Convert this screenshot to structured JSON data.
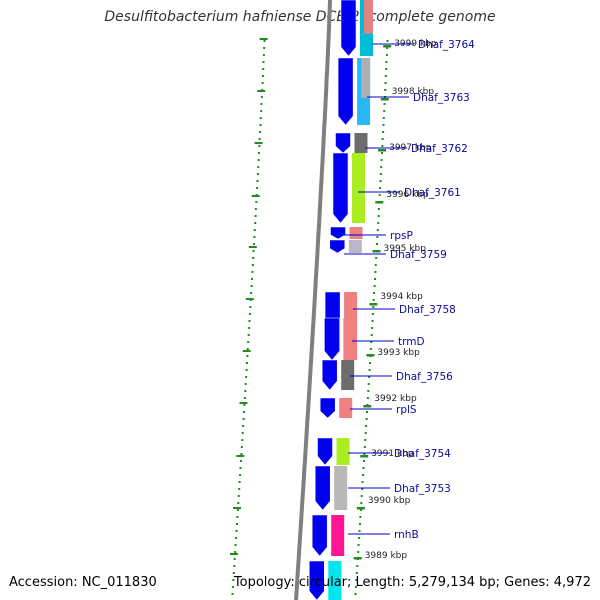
{
  "title": "Desulfitobacterium hafniense DCB-2, complete genome",
  "accession": "Accession: NC_011830",
  "topology": "Topology: circular; Length: 5,279,134 bp; Genes: 4,972",
  "colors": {
    "forward": "#0000ee",
    "backbone": "#7f7f7f",
    "ticks": "#228b22",
    "label_line": "#0000cc",
    "label_text": "#0a0a99"
  },
  "genes": [
    {
      "name": "Dhaf_3764",
      "strand": "forward",
      "color": "#00bcd4",
      "extra_color": "#f08080"
    },
    {
      "name": "Dhaf_3763",
      "strand": "forward",
      "color": "#29b6f6",
      "extra_color": "#b0b0b0"
    },
    {
      "name": "Dhaf_3762",
      "strand": "forward",
      "color": "#6d6d6d"
    },
    {
      "name": "Dhaf_3761",
      "strand": "forward",
      "color": "#aaee22"
    },
    {
      "name": "rpsP",
      "strand": "forward",
      "color": "#f08080"
    },
    {
      "name": "Dhaf_3759",
      "strand": "forward",
      "color": "#b8b8c8"
    },
    {
      "name": "Dhaf_3758",
      "strand": "forward",
      "color": "#f08080"
    },
    {
      "name": "trmD",
      "strand": "forward",
      "color": "#f08080"
    },
    {
      "name": "Dhaf_3756",
      "strand": "forward",
      "color": "#6d6d6d"
    },
    {
      "name": "rplS",
      "strand": "forward",
      "color": "#f08080"
    },
    {
      "name": "Dhaf_3754",
      "strand": "forward",
      "color": "#aaee22"
    },
    {
      "name": "Dhaf_3753",
      "strand": "forward",
      "color": "#b8b8b8"
    },
    {
      "name": "rnhB",
      "strand": "forward",
      "color": "#ff1493"
    },
    {
      "name": "",
      "strand": "forward",
      "color": "#00e5ee"
    }
  ],
  "ticks": [
    "3999 kbp",
    "3998 kbp",
    "3997 kbp",
    "3996 kbp",
    "3995 kbp",
    "3994 kbp",
    "3993 kbp",
    "3992 kbp",
    "3991 kbp",
    "3990 kbp",
    "3989 kbp"
  ]
}
